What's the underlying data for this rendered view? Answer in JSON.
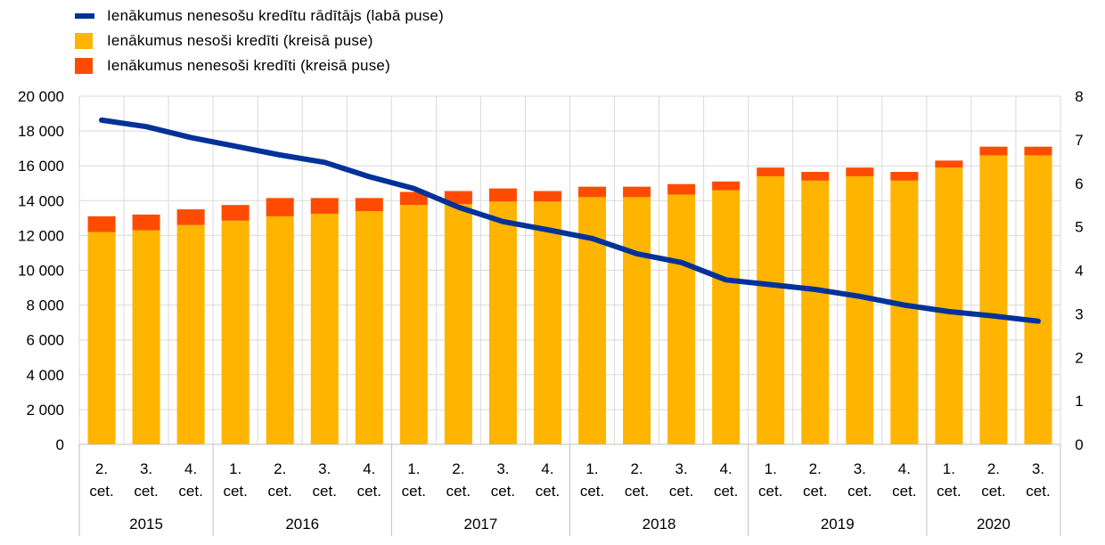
{
  "legend": {
    "line_label": "Ienākumus nenesošu kredītu rādītājs (labā puse)",
    "performing_label": "Ienākumus nesoši kredīti (kreisā puse)",
    "nonperforming_label": "Ienākumus nenesoši kredīti (kreisā puse)"
  },
  "colors": {
    "performing": "#FFB400",
    "nonperforming": "#FF4B00",
    "ratio_line": "#003299",
    "grid": "#d9d9d9",
    "axis": "#bfbfbf"
  },
  "chart_data": {
    "type": "bar",
    "stacked": true,
    "categories": [
      [
        "2.",
        "cet."
      ],
      [
        "3.",
        "cet."
      ],
      [
        "4.",
        "cet."
      ],
      [
        "1.",
        "cet."
      ],
      [
        "2.",
        "cet."
      ],
      [
        "3.",
        "cet."
      ],
      [
        "4.",
        "cet."
      ],
      [
        "1.",
        "cet."
      ],
      [
        "2.",
        "cet."
      ],
      [
        "3.",
        "cet."
      ],
      [
        "4.",
        "cet."
      ],
      [
        "1.",
        "cet."
      ],
      [
        "2.",
        "cet."
      ],
      [
        "3.",
        "cet."
      ],
      [
        "4.",
        "cet."
      ],
      [
        "1.",
        "cet."
      ],
      [
        "2.",
        "cet."
      ],
      [
        "3.",
        "cet."
      ],
      [
        "4.",
        "cet."
      ],
      [
        "1.",
        "cet."
      ],
      [
        "2.",
        "cet."
      ],
      [
        "3.",
        "cet."
      ]
    ],
    "years": [
      {
        "label": "2015",
        "count": 3
      },
      {
        "label": "2016",
        "count": 4
      },
      {
        "label": "2017",
        "count": 4
      },
      {
        "label": "2018",
        "count": 4
      },
      {
        "label": "2019",
        "count": 4
      },
      {
        "label": "2020",
        "count": 3
      }
    ],
    "series": [
      {
        "name": "Ienākumus nesoši kredīti (kreisā puse)",
        "axis": "left",
        "values": [
          12200,
          12300,
          12600,
          12850,
          13100,
          13250,
          13400,
          13750,
          13800,
          13950,
          13950,
          14200,
          14200,
          14350,
          14600,
          15400,
          15150,
          15400,
          15150,
          15900,
          16600,
          16600
        ]
      },
      {
        "name": "Ienākumus nenesoši kredīti (kreisā puse)",
        "axis": "left",
        "values": [
          900,
          900,
          900,
          900,
          1050,
          900,
          750,
          750,
          750,
          750,
          600,
          600,
          600,
          600,
          500,
          500,
          500,
          500,
          500,
          400,
          500,
          500
        ]
      },
      {
        "name": "Ienākumus nenesošu kredītu rādītājs (labā puse)",
        "axis": "right",
        "type": "line",
        "values": [
          7.45,
          7.3,
          7.05,
          6.85,
          6.65,
          6.48,
          6.15,
          5.88,
          5.45,
          5.12,
          4.93,
          4.73,
          4.38,
          4.18,
          3.78,
          3.67,
          3.56,
          3.4,
          3.2,
          3.05,
          2.95,
          2.83
        ]
      }
    ],
    "y_left": {
      "min": 0,
      "max": 20000,
      "ticks": [
        "0",
        "2 000",
        "4 000",
        "6 000",
        "8 000",
        "10 000",
        "12 000",
        "14 000",
        "16 000",
        "18 000",
        "20 000"
      ]
    },
    "y_right": {
      "min": 0,
      "max": 8,
      "ticks": [
        "0",
        "1",
        "2",
        "3",
        "4",
        "5",
        "6",
        "7",
        "8"
      ]
    },
    "grid": true,
    "legend_position": "top-left"
  }
}
